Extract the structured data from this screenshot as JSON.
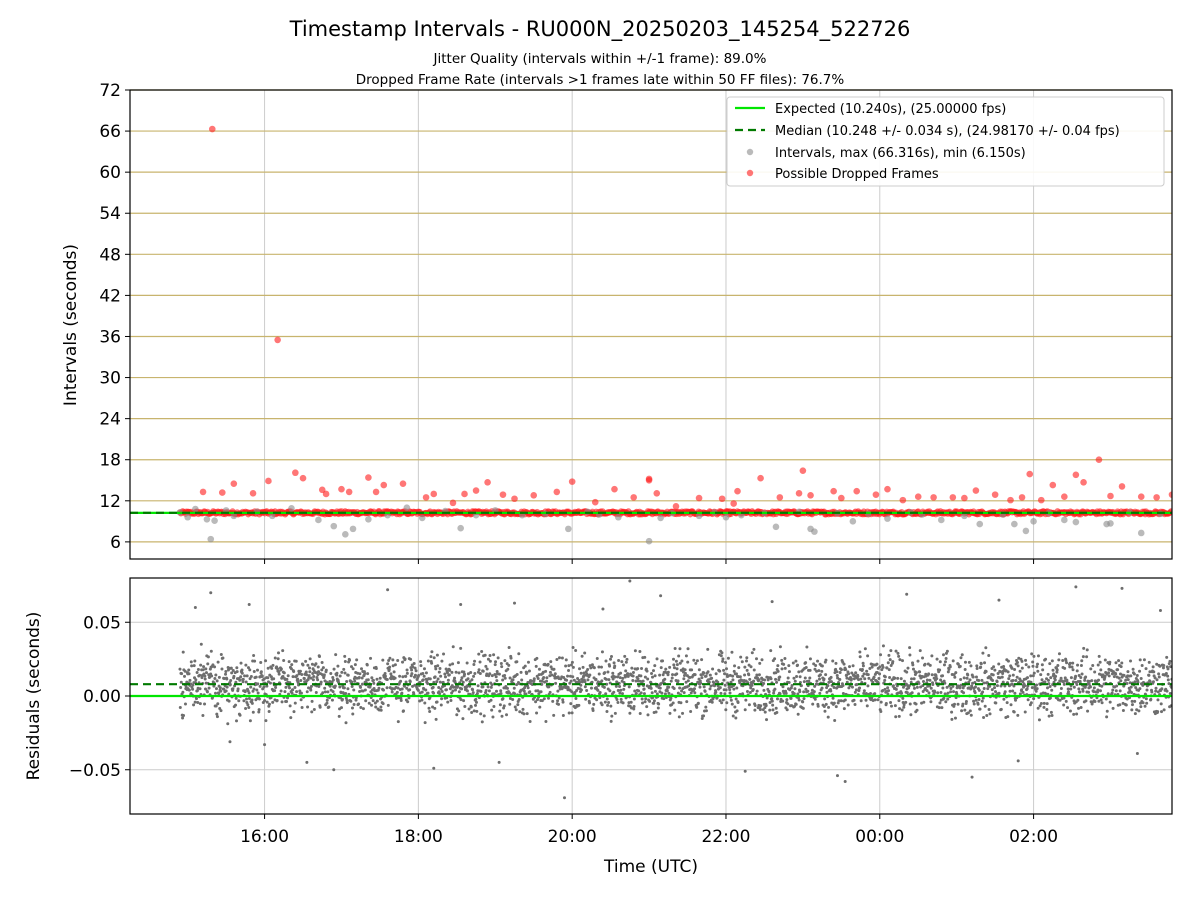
{
  "figure": {
    "title": "Timestamp Intervals - RU000N_20250203_145254_522726",
    "subtitle_1": "Jitter Quality (intervals within +/-1 frame): 89.0%",
    "subtitle_2": "Dropped Frame Rate (intervals >1 frames late within 50 FF files): 76.7%",
    "colors": {
      "expected": "#00e600",
      "median": "#007a00",
      "intervals": "#8c8c8c",
      "dropped": "#ff1a1a",
      "residual": "#6e6e6e",
      "hline": "#c8b46e",
      "grid": "#cccccc"
    }
  },
  "chart_data": [
    {
      "type": "scatter",
      "ylabel": "Intervals (seconds)",
      "ylim": [
        3.5,
        72
      ],
      "yticks": [
        "6",
        "12",
        "18",
        "24",
        "30",
        "36",
        "42",
        "48",
        "54",
        "60",
        "66",
        "72"
      ],
      "xlim_hours": [
        14.25,
        27.8
      ],
      "xticks_hours": [
        16,
        18,
        20,
        22,
        24,
        26
      ],
      "vertical_grid": true,
      "horizontal_lines_at_ticks": true,
      "legend_position": "top-right",
      "legend": [
        {
          "label": "Expected (10.240s), (25.00000 fps)",
          "style": "solid-line",
          "color": "#00e600"
        },
        {
          "label": "Median (10.248 +/- 0.034 s), (24.98170 +/- 0.04 fps)",
          "style": "dashed-line",
          "color": "#007a00"
        },
        {
          "label": "Intervals, max (66.316s), min (6.150s)",
          "style": "marker",
          "color": "#8c8c8c"
        },
        {
          "label": "Possible Dropped Frames",
          "style": "marker",
          "color": "#ff1a1a"
        }
      ],
      "expected_interval": 10.24,
      "median_interval": 10.248,
      "series": [
        {
          "name": "Intervals, max (66.316s), min (6.150s)",
          "color": "#8c8c8c",
          "points": [
            [
              14.9,
              10.3
            ],
            [
              15.0,
              9.6
            ],
            [
              15.1,
              10.8
            ],
            [
              15.25,
              9.3
            ],
            [
              15.3,
              6.4
            ],
            [
              15.35,
              9.1
            ],
            [
              15.5,
              10.6
            ],
            [
              15.6,
              9.8
            ],
            [
              15.9,
              10.4
            ],
            [
              16.1,
              9.8
            ],
            [
              16.35,
              10.9
            ],
            [
              16.7,
              9.2
            ],
            [
              16.9,
              8.3
            ],
            [
              17.05,
              7.1
            ],
            [
              17.15,
              7.9
            ],
            [
              17.35,
              9.3
            ],
            [
              17.6,
              9.9
            ],
            [
              17.85,
              11.0
            ],
            [
              18.05,
              9.5
            ],
            [
              18.35,
              10.5
            ],
            [
              18.55,
              8.0
            ],
            [
              18.75,
              9.9
            ],
            [
              19.0,
              10.6
            ],
            [
              19.35,
              9.9
            ],
            [
              19.65,
              10.1
            ],
            [
              19.95,
              7.9
            ],
            [
              20.2,
              10.4
            ],
            [
              20.35,
              10.0
            ],
            [
              20.6,
              9.6
            ],
            [
              21.0,
              6.1
            ],
            [
              21.15,
              9.5
            ],
            [
              21.3,
              10.2
            ],
            [
              21.65,
              9.8
            ],
            [
              21.85,
              10.3
            ],
            [
              22.0,
              9.6
            ],
            [
              22.2,
              9.9
            ],
            [
              22.5,
              10.2
            ],
            [
              22.65,
              8.2
            ],
            [
              22.95,
              10.4
            ],
            [
              23.1,
              7.9
            ],
            [
              23.15,
              7.5
            ],
            [
              23.45,
              10.2
            ],
            [
              23.65,
              9.0
            ],
            [
              23.85,
              10.1
            ],
            [
              24.1,
              9.4
            ],
            [
              24.4,
              10.3
            ],
            [
              24.55,
              10.0
            ],
            [
              24.8,
              9.2
            ],
            [
              25.1,
              9.8
            ],
            [
              25.3,
              8.6
            ],
            [
              25.6,
              10.0
            ],
            [
              25.75,
              8.6
            ],
            [
              25.9,
              7.6
            ],
            [
              26.0,
              9.0
            ],
            [
              26.2,
              10.2
            ],
            [
              26.4,
              9.2
            ],
            [
              26.55,
              8.9
            ],
            [
              26.95,
              8.6
            ],
            [
              27.0,
              8.7
            ],
            [
              27.25,
              10.3
            ],
            [
              27.4,
              7.3
            ],
            [
              27.65,
              10.1
            ]
          ]
        },
        {
          "name": "Possible Dropped Frames",
          "color": "#ff1a1a",
          "points": [
            [
              15.32,
              66.3
            ],
            [
              16.17,
              35.5
            ],
            [
              15.2,
              13.3
            ],
            [
              15.45,
              13.2
            ],
            [
              15.6,
              14.5
            ],
            [
              15.85,
              13.1
            ],
            [
              16.05,
              14.9
            ],
            [
              16.4,
              16.1
            ],
            [
              16.5,
              15.3
            ],
            [
              16.75,
              13.6
            ],
            [
              16.8,
              13.0
            ],
            [
              17.0,
              13.7
            ],
            [
              17.1,
              13.3
            ],
            [
              17.35,
              15.4
            ],
            [
              17.45,
              13.3
            ],
            [
              17.55,
              14.3
            ],
            [
              17.8,
              14.5
            ],
            [
              18.1,
              12.5
            ],
            [
              18.2,
              13.0
            ],
            [
              18.45,
              11.7
            ],
            [
              18.6,
              13.0
            ],
            [
              18.75,
              13.5
            ],
            [
              18.9,
              14.7
            ],
            [
              19.1,
              12.9
            ],
            [
              19.25,
              12.3
            ],
            [
              19.5,
              12.8
            ],
            [
              19.8,
              13.3
            ],
            [
              20.0,
              14.8
            ],
            [
              20.3,
              11.8
            ],
            [
              20.55,
              13.7
            ],
            [
              20.8,
              12.5
            ],
            [
              21.0,
              15.0
            ],
            [
              21.0,
              15.2
            ],
            [
              21.1,
              13.1
            ],
            [
              21.35,
              11.2
            ],
            [
              21.65,
              12.4
            ],
            [
              21.95,
              12.3
            ],
            [
              22.1,
              11.6
            ],
            [
              22.15,
              13.4
            ],
            [
              22.45,
              15.3
            ],
            [
              22.7,
              12.5
            ],
            [
              22.95,
              13.1
            ],
            [
              23.0,
              16.4
            ],
            [
              23.1,
              12.8
            ],
            [
              23.4,
              13.4
            ],
            [
              23.5,
              12.4
            ],
            [
              23.7,
              13.4
            ],
            [
              23.95,
              12.9
            ],
            [
              24.1,
              13.7
            ],
            [
              24.3,
              12.1
            ],
            [
              24.5,
              12.6
            ],
            [
              24.7,
              12.5
            ],
            [
              24.95,
              12.5
            ],
            [
              25.1,
              12.4
            ],
            [
              25.25,
              13.5
            ],
            [
              25.5,
              12.9
            ],
            [
              25.7,
              12.1
            ],
            [
              25.85,
              12.5
            ],
            [
              25.95,
              15.9
            ],
            [
              26.1,
              12.1
            ],
            [
              26.25,
              14.3
            ],
            [
              26.4,
              12.6
            ],
            [
              26.55,
              15.8
            ],
            [
              26.65,
              14.7
            ],
            [
              26.85,
              18.0
            ],
            [
              27.0,
              12.7
            ],
            [
              27.15,
              14.1
            ],
            [
              27.4,
              12.6
            ],
            [
              27.6,
              12.5
            ],
            [
              27.8,
              12.9
            ]
          ]
        }
      ]
    },
    {
      "type": "scatter",
      "ylabel": "Residuals (seconds)",
      "xlabel": "Time (UTC)",
      "ylim": [
        -0.08,
        0.08
      ],
      "yticks": [
        "0.05",
        "0.00",
        "−0.05"
      ],
      "xlim_hours": [
        14.25,
        27.8
      ],
      "xticks": [
        "16:00",
        "18:00",
        "20:00",
        "22:00",
        "00:00",
        "02:00"
      ],
      "horizontal_grid": true,
      "vertical_grid": true,
      "expected_residual": 0.0,
      "median_residual": 0.008,
      "time_span_hours": [
        14.9,
        27.8
      ],
      "series": [
        {
          "name": "Residuals",
          "color": "#6e6e6e",
          "points": [
            [
              15.1,
              0.06
            ],
            [
              15.3,
              0.07
            ],
            [
              15.55,
              -0.031
            ],
            [
              15.8,
              0.062
            ],
            [
              16.0,
              -0.033
            ],
            [
              16.55,
              -0.045
            ],
            [
              16.9,
              -0.05
            ],
            [
              17.6,
              0.072
            ],
            [
              18.2,
              -0.049
            ],
            [
              18.55,
              0.062
            ],
            [
              19.05,
              -0.045
            ],
            [
              19.25,
              0.063
            ],
            [
              19.9,
              -0.069
            ],
            [
              20.4,
              0.059
            ],
            [
              20.75,
              0.078
            ],
            [
              21.15,
              0.068
            ],
            [
              22.25,
              -0.051
            ],
            [
              22.6,
              0.064
            ],
            [
              23.45,
              -0.054
            ],
            [
              23.55,
              -0.058
            ],
            [
              24.35,
              0.069
            ],
            [
              25.2,
              -0.055
            ],
            [
              25.55,
              0.065
            ],
            [
              25.8,
              -0.044
            ],
            [
              26.55,
              0.074
            ],
            [
              27.15,
              0.073
            ],
            [
              27.35,
              -0.039
            ],
            [
              27.65,
              0.058
            ]
          ]
        }
      ]
    }
  ]
}
